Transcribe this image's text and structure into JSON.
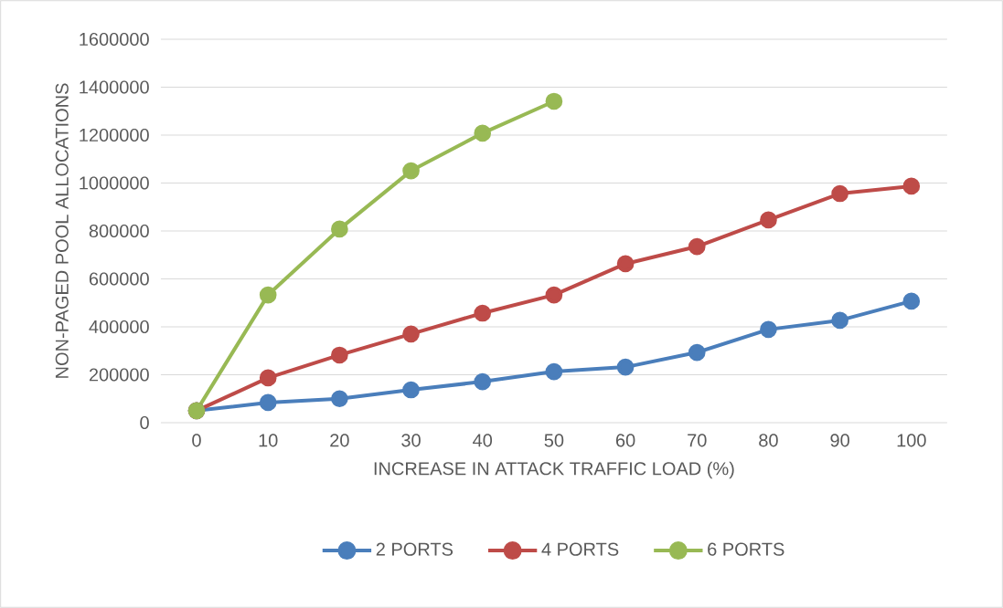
{
  "chart_data": {
    "type": "line",
    "xlabel": "INCREASE IN ATTACK TRAFFIC LOAD (%)",
    "ylabel": "NON-PAGED POOL ALLOCATIONS",
    "categories": [
      "0",
      "10",
      "20",
      "30",
      "40",
      "50",
      "60",
      "70",
      "80",
      "90",
      "100"
    ],
    "series": [
      {
        "name": "2 PORTS",
        "color": "#4a7ebb",
        "values": [
          50000,
          84000,
          100000,
          137000,
          171000,
          213000,
          232000,
          293000,
          389000,
          427000,
          507000
        ]
      },
      {
        "name": "4 PORTS",
        "color": "#be4b48",
        "values": [
          50000,
          187000,
          282000,
          370000,
          457000,
          533000,
          663000,
          735000,
          846000,
          956000,
          987000
        ]
      },
      {
        "name": "6 PORTS",
        "color": "#98b954",
        "values": [
          50000,
          533000,
          808000,
          1051000,
          1208000,
          1341000,
          null,
          null,
          null,
          null,
          null
        ]
      }
    ],
    "ylim": [
      0,
      1600000
    ],
    "yticks": [
      0,
      200000,
      400000,
      600000,
      800000,
      1000000,
      1200000,
      1400000,
      1600000
    ],
    "grid": "y",
    "legend": "bottom",
    "marker": "circle",
    "line_style": "solid"
  }
}
